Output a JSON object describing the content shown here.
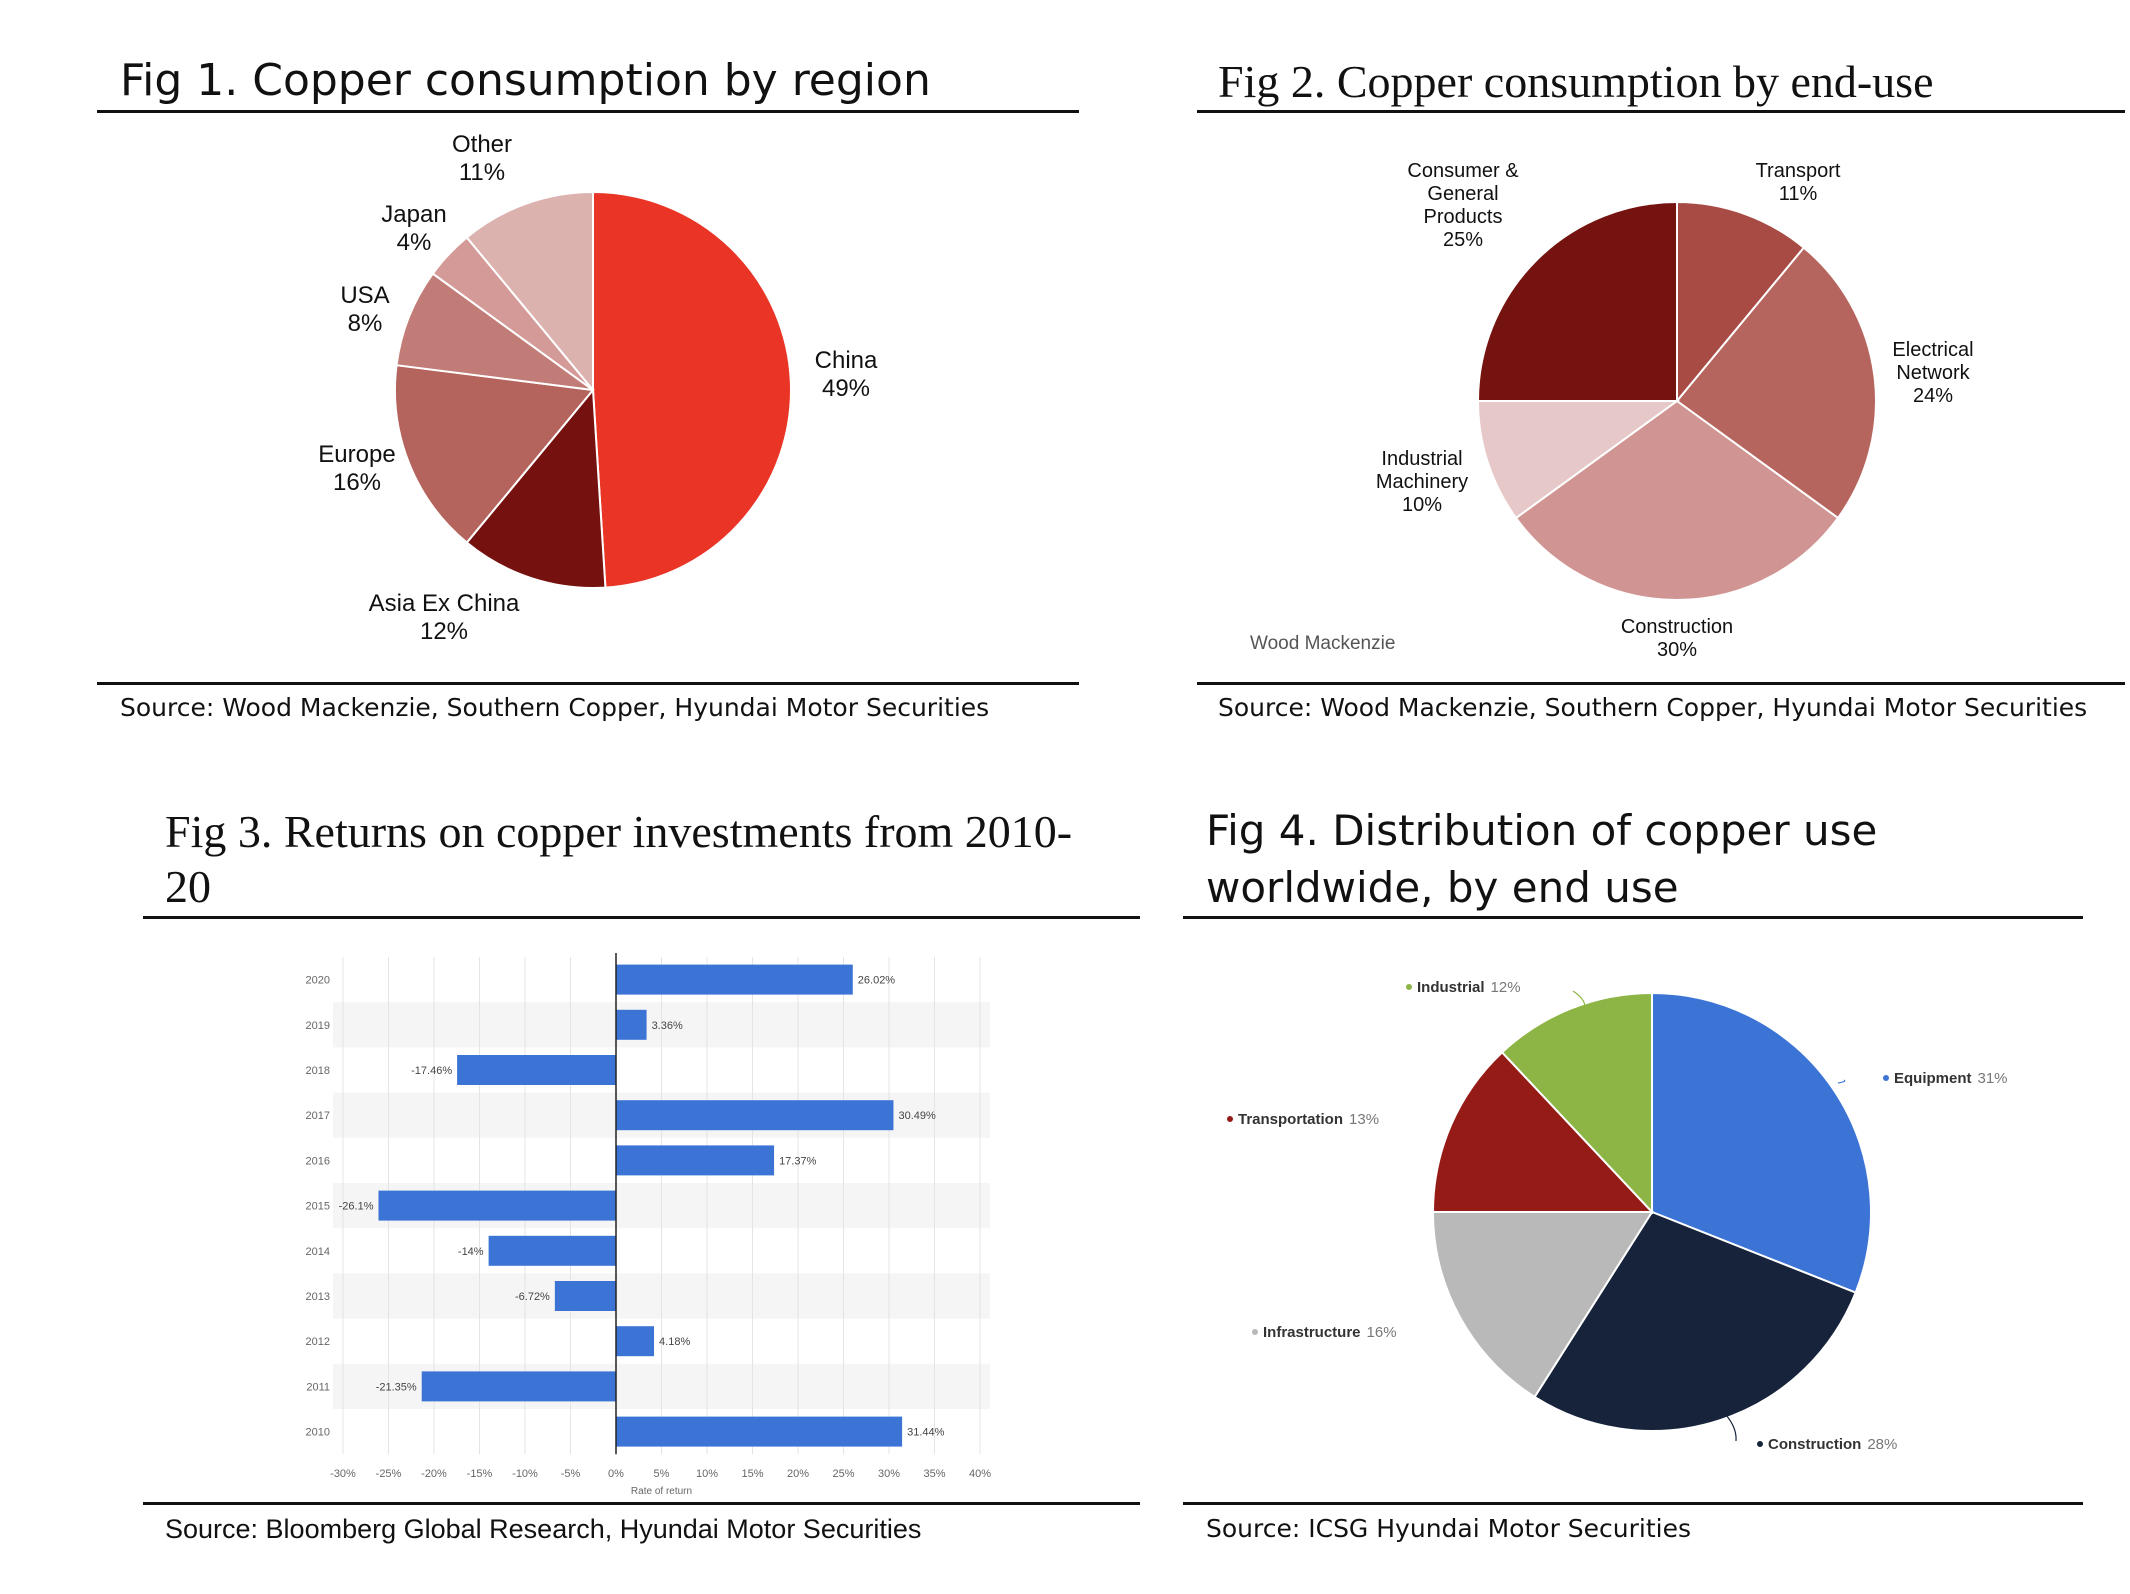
{
  "figures": {
    "fig1": {
      "title": "Fig 1. Copper consumption by region",
      "source": "Source: Wood Mackenzie, Southern Copper, Hyundai Motor Securities"
    },
    "fig2": {
      "title": "Fig 2. Copper consumption by end-use",
      "source": "Source: Wood Mackenzie, Southern Copper, Hyundai Motor Securities",
      "credit": "Wood Mackenzie"
    },
    "fig3": {
      "title_line1": "Fig 3. Returns on copper investments from 2010-",
      "title_line2": "20",
      "source": "Source: Bloomberg Global Research, Hyundai Motor Securities"
    },
    "fig4": {
      "title_line1": "Fig 4. Distribution of copper use",
      "title_line2": "worldwide, by end use",
      "source": "Source: ICSG Hyundai Motor Securities"
    }
  },
  "chart_data": [
    {
      "id": "fig1",
      "type": "pie",
      "slices": [
        {
          "name": "China",
          "value": 49,
          "label": "49%",
          "color": "#e93426"
        },
        {
          "name": "Asia Ex China",
          "value": 12,
          "label": "12%",
          "color": "#75120f"
        },
        {
          "name": "Europe",
          "value": 16,
          "label": "16%",
          "color": "#b4645c"
        },
        {
          "name": "USA",
          "value": 8,
          "label": "8%",
          "color": "#c27c77"
        },
        {
          "name": "Japan",
          "value": 4,
          "label": "4%",
          "color": "#d49a97"
        },
        {
          "name": "Other",
          "value": 11,
          "label": "11%",
          "color": "#dcb2af"
        }
      ]
    },
    {
      "id": "fig2",
      "type": "pie",
      "slices": [
        {
          "name": "Transport",
          "value": 11,
          "label": "11%",
          "color": "#a84b45"
        },
        {
          "name": "Electrical Network",
          "value": 24,
          "label": "24%",
          "color": "#b6655e"
        },
        {
          "name": "Construction",
          "value": 30,
          "label": "30%",
          "color": "#d09592"
        },
        {
          "name": "Industrial Machinery",
          "value": 10,
          "label": "10%",
          "color": "#e6c8c8"
        },
        {
          "name": "Consumer & General Products",
          "value": 25,
          "label": "25%",
          "color": "#74130f"
        }
      ]
    },
    {
      "id": "fig3",
      "type": "bar",
      "orientation": "horizontal",
      "categories": [
        "2020",
        "2019",
        "2018",
        "2017",
        "2016",
        "2015",
        "2014",
        "2013",
        "2012",
        "2011",
        "2010"
      ],
      "values": [
        26.02,
        3.36,
        -17.46,
        30.49,
        17.37,
        -26.1,
        -14,
        -6.72,
        4.18,
        -21.35,
        31.44
      ],
      "value_labels": [
        "26.02%",
        "3.36%",
        "-17.46%",
        "30.49%",
        "17.37%",
        "-26.1%",
        "-14%",
        "-6.72%",
        "4.18%",
        "-21.35%",
        "31.44%"
      ],
      "xlabel": "Rate of return",
      "xlim": [
        -30,
        40
      ],
      "xticks": [
        "-30%",
        "-25%",
        "-20%",
        "-15%",
        "-10%",
        "-5%",
        "0%",
        "5%",
        "10%",
        "15%",
        "20%",
        "25%",
        "30%",
        "35%",
        "40%"
      ],
      "bar_color": "#3c74d6",
      "grid": true
    },
    {
      "id": "fig4",
      "type": "pie",
      "slices": [
        {
          "name": "Equipment",
          "value": 31,
          "label": "31%",
          "color": "#3c74d6"
        },
        {
          "name": "Construction",
          "value": 28,
          "label": "28%",
          "color": "#16233b"
        },
        {
          "name": "Infrastructure",
          "value": 16,
          "label": "16%",
          "color": "#b9b9b9"
        },
        {
          "name": "Transportation",
          "value": 13,
          "label": "13%",
          "color": "#951b17"
        },
        {
          "name": "Industrial",
          "value": 12,
          "label": "12%",
          "color": "#8db545"
        }
      ]
    }
  ]
}
